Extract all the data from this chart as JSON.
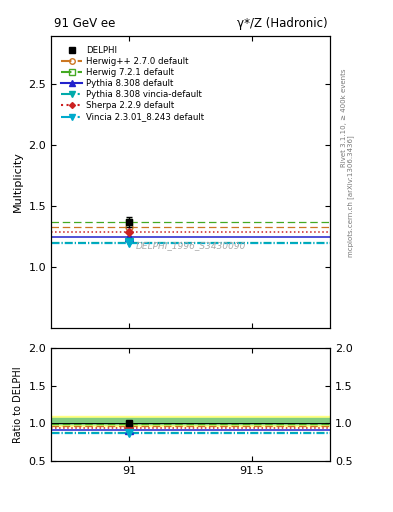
{
  "title_left": "91 GeV ee",
  "title_right": "γ*/Z (Hadronic)",
  "right_label1": "Rivet 3.1.10, ≥ 400k events",
  "right_label2": "mcplots.cern.ch [arXiv:1306.3436]",
  "ylabel_main": "Multiplicity",
  "ylabel_ratio": "Ratio to DELPHI",
  "watermark": "DELPHI_1996_S3430090",
  "xlim": [
    90.68,
    91.82
  ],
  "xticks": [
    91.0,
    91.5
  ],
  "xticklabels": [
    "91",
    "91.5"
  ],
  "ylim_main": [
    0.5,
    2.9
  ],
  "yticks_main": [
    1.0,
    1.5,
    2.0,
    2.5
  ],
  "ylim_ratio": [
    0.5,
    2.0
  ],
  "yticks_ratio": [
    0.5,
    1.0,
    1.5,
    2.0
  ],
  "data_x": 91.0,
  "data_y": 1.37,
  "data_yerr": 0.04,
  "herwig270_y": 1.33,
  "herwig721_y": 1.365,
  "pythia8308_y": 1.245,
  "pythia8308v_y": 1.205,
  "sherpa229_y": 1.285,
  "vincia_y": 1.2,
  "colors": {
    "herwig270": "#cc7722",
    "herwig721": "#44aa22",
    "pythia8308": "#2222cc",
    "pythia8308v": "#00aaaa",
    "sherpa229": "#cc2222",
    "vincia": "#00aacc"
  },
  "band_yellow_lo": 0.97,
  "band_yellow_hi": 1.1,
  "band_green_lo": 0.985,
  "band_green_hi": 1.065,
  "ratio_herwig270": 0.97,
  "ratio_herwig721": 0.996,
  "ratio_pythia8308": 0.908,
  "ratio_pythia8308v": 0.879,
  "ratio_sherpa229": 0.938,
  "ratio_vincia": 0.876,
  "ratio_data_y": 1.0,
  "ratio_data_yerr": 0.029
}
